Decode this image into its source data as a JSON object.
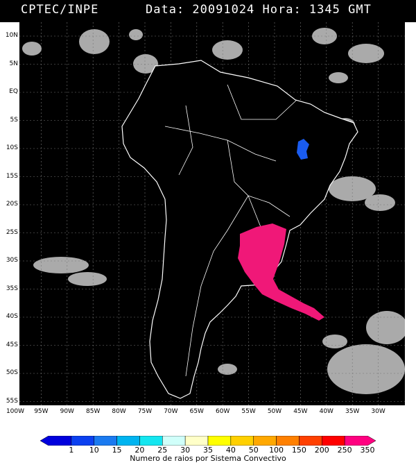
{
  "header": {
    "source": "CPTEC/INPE",
    "datetime": "Data: 20091024 Hora: 1345 GMT"
  },
  "map": {
    "lat_labels": [
      "10N",
      "5N",
      "EQ",
      "5S",
      "10S",
      "15S",
      "20S",
      "25S",
      "30S",
      "35S",
      "40S",
      "45S",
      "50S",
      "55S"
    ],
    "lon_labels": [
      "100W",
      "95W",
      "90W",
      "85W",
      "80W",
      "75W",
      "70W",
      "65W",
      "60W",
      "55W",
      "50W",
      "45W",
      "40W",
      "35W",
      "30W"
    ]
  },
  "colorbar": {
    "labels": [
      "1",
      "10",
      "15",
      "20",
      "25",
      "30",
      "35",
      "40",
      "50",
      "100",
      "150",
      "200",
      "250",
      "350"
    ],
    "colors": [
      "#0000dd",
      "#0b40f0",
      "#1a7af0",
      "#00b4f0",
      "#14e6f0",
      "#d0fffa",
      "#ffffc8",
      "#ffff00",
      "#ffd000",
      "#ffa800",
      "#ff8000",
      "#ff4000",
      "#ff0000",
      "#ff0080"
    ],
    "title": "Numero de raios por Sistema Convectivo"
  }
}
